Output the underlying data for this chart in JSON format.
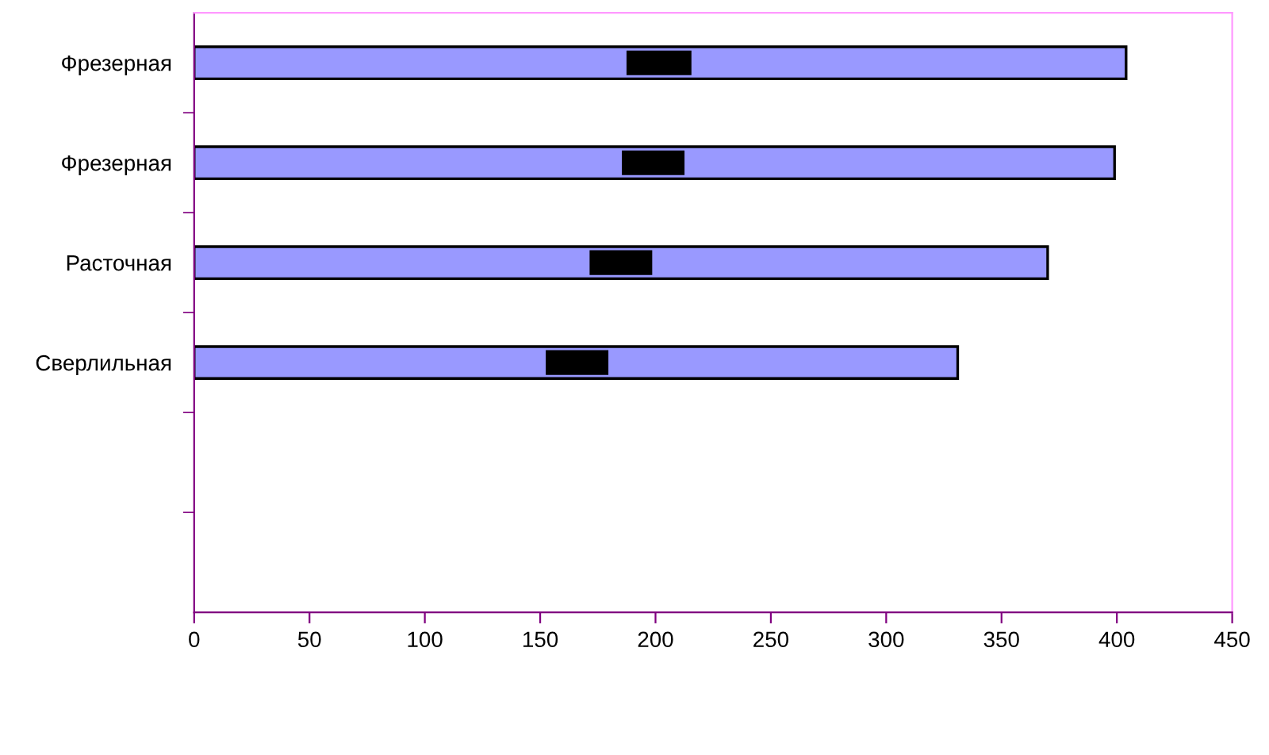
{
  "chart_data": {
    "type": "bar",
    "orientation": "horizontal",
    "categories": [
      "Фрезерная",
      "Фрезерная",
      "Расточная",
      "Сверлильная",
      null,
      null
    ],
    "series": [
      {
        "color": "#9999ff",
        "values": [
          404,
          399,
          370,
          331,
          null,
          null
        ]
      },
      {
        "color": "#000000",
        "values": [
          27,
          26,
          26,
          26,
          null,
          null
        ],
        "base": [
          188,
          186,
          172,
          153,
          null,
          null
        ]
      }
    ],
    "xlim": [
      0,
      450
    ],
    "xticks": [
      0,
      50,
      100,
      150,
      200,
      250,
      300,
      350,
      400,
      450
    ],
    "grid": false,
    "legend": false
  }
}
